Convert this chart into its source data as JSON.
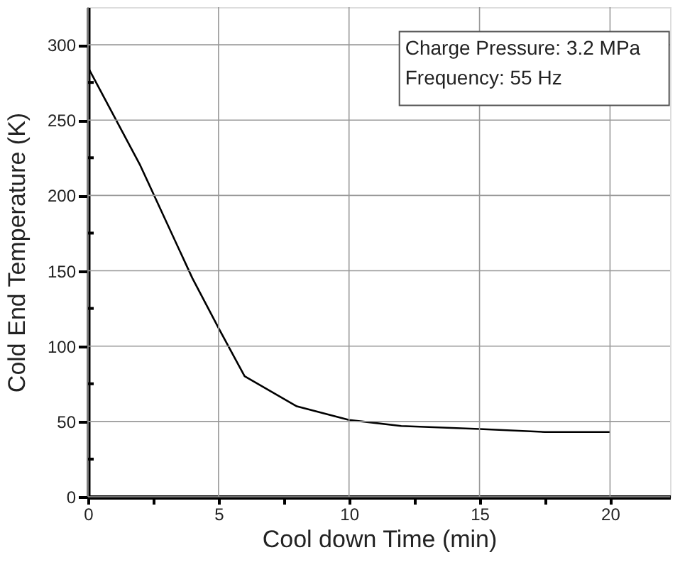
{
  "chart_data": {
    "type": "line",
    "xlabel": "Cool down Time (min)",
    "ylabel": "Cold End Temperature  (K)",
    "annotations": [
      "Charge Pressure: 3.2 MPa",
      "Frequency: 55 Hz"
    ],
    "x": [
      0,
      2,
      4,
      5,
      6,
      8,
      10,
      12,
      15,
      17.5,
      20
    ],
    "series": [
      {
        "color": "#000000",
        "values": [
          285,
          220,
          145,
          112,
          80,
          60,
          51,
          47,
          45,
          43,
          43
        ]
      }
    ],
    "xlim": [
      0,
      22.3
    ],
    "ylim": [
      0,
      325
    ],
    "xticks": [
      0,
      {
        "value": 2.5,
        "label": null
      },
      5,
      {
        "value": 7.5,
        "label": null
      },
      10,
      {
        "value": 12.5,
        "label": null
      },
      15,
      {
        "value": 17.5,
        "label": null
      },
      20
    ],
    "yticks": [
      0,
      {
        "value": 25,
        "label": null
      },
      50,
      {
        "value": 75,
        "label": null
      },
      100,
      {
        "value": 125,
        "label": null
      },
      150,
      {
        "value": 175,
        "label": null
      },
      200,
      {
        "value": 225,
        "label": null
      },
      250,
      {
        "value": 275,
        "label": null
      },
      300
    ],
    "grid": true,
    "marker": "none",
    "line_style": "solid"
  }
}
